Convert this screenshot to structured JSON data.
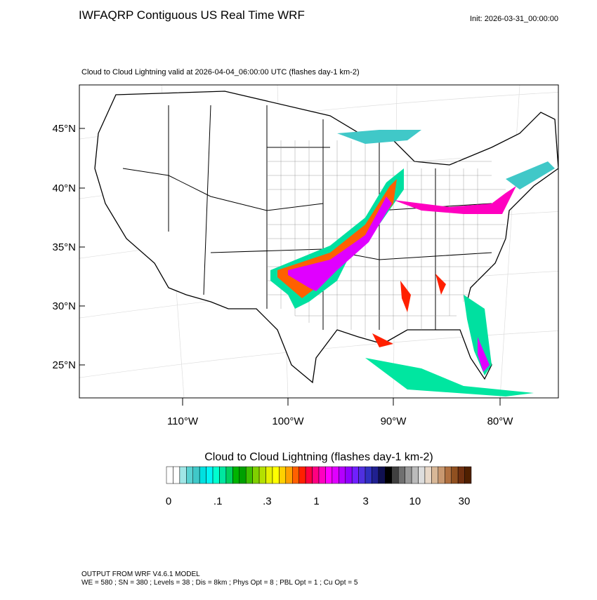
{
  "header": {
    "title": "IWFAQRP Contiguous US Real Time WRF",
    "init": "Init: 2026-03-31_00:00:00"
  },
  "plot": {
    "subtitle": "Cloud to Cloud Lightning valid at 2026-04-04_06:00:00 UTC   (flashes day-1 km-2)"
  },
  "axes": {
    "lat_labels": [
      "45°N",
      "40°N",
      "35°N",
      "30°N",
      "25°N"
    ],
    "lon_labels": [
      "110°W",
      "100°W",
      "90°W",
      "80°W"
    ]
  },
  "colorbar": {
    "title": "Cloud to Cloud Lightning  (flashes day-1 km-2)",
    "colors": [
      "#ffffff",
      "#ffffff",
      "#a0e6e6",
      "#5ad2d2",
      "#40c8c8",
      "#00e0e0",
      "#00f5f5",
      "#00ffd0",
      "#00e6a0",
      "#00d060",
      "#00b400",
      "#00a000",
      "#40c000",
      "#80d000",
      "#b4e000",
      "#e6f000",
      "#ffff00",
      "#ffd000",
      "#ffa000",
      "#ff6000",
      "#ff2000",
      "#ff0040",
      "#ff0080",
      "#ff00c0",
      "#ff00ff",
      "#e000ff",
      "#b400ff",
      "#9000ff",
      "#7020ff",
      "#5030e0",
      "#3030c0",
      "#202090",
      "#101050",
      "#000000",
      "#404040",
      "#707070",
      "#999999",
      "#bbbbbb",
      "#dddddd",
      "#e8d8c8",
      "#d8b898",
      "#c89870",
      "#b07040",
      "#905020",
      "#703010",
      "#502000"
    ],
    "labels": [
      "0",
      ".1",
      ".3",
      "1",
      "3",
      "10",
      "30"
    ]
  },
  "footer": {
    "line1": "OUTPUT FROM WRF V4.6.1 MODEL",
    "line2": "WE = 580 ; SN = 380 ; Levels = 38 ; Dis = 8km ; Phys Opt = 8 ; PBL Opt = 1 ; Cu Opt = 5"
  }
}
